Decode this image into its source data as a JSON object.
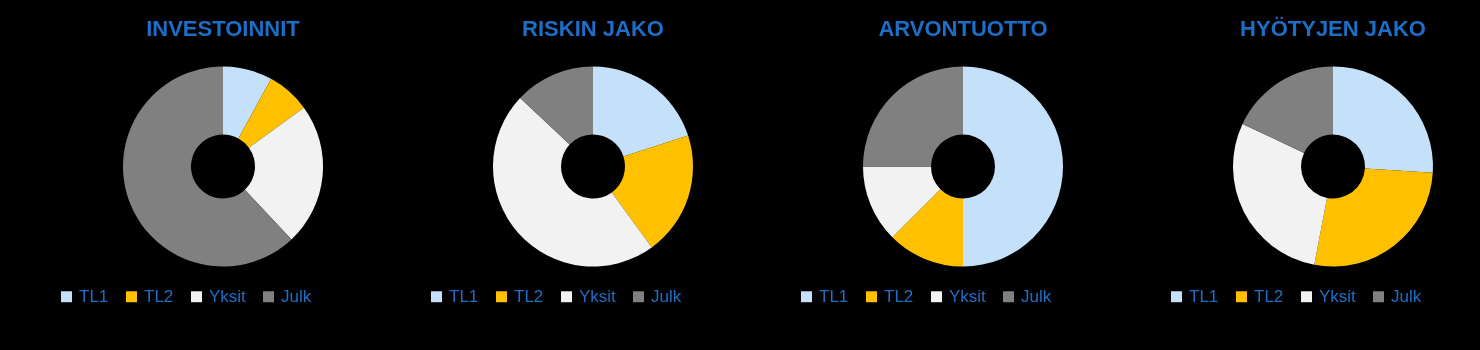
{
  "chart_data": [
    {
      "type": "donut",
      "title": "INVESTOINNIT",
      "categories": [
        "TL1",
        "TL2",
        "Yksit",
        "Julk"
      ],
      "values": [
        8,
        7,
        23,
        62
      ],
      "colors": [
        "#c5e0f9",
        "#ffc000",
        "#f2f2f2",
        "#808080"
      ],
      "legend": "bottom"
    },
    {
      "type": "donut",
      "title": "RISKIN JAKO",
      "categories": [
        "TL1",
        "TL2",
        "Yksit",
        "Julk"
      ],
      "values": [
        20,
        20,
        47,
        13
      ],
      "colors": [
        "#c5e0f9",
        "#ffc000",
        "#f2f2f2",
        "#808080"
      ],
      "legend": "bottom"
    },
    {
      "type": "donut",
      "title": "ARVONTUOTTO",
      "categories": [
        "TL1",
        "TL2",
        "Yksit",
        "Julk"
      ],
      "values": [
        50,
        12.5,
        12.5,
        25
      ],
      "colors": [
        "#c5e0f9",
        "#ffc000",
        "#f2f2f2",
        "#808080"
      ],
      "legend": "bottom"
    },
    {
      "type": "donut",
      "title": "HYÖTYJEN JAKO",
      "categories": [
        "TL1",
        "TL2",
        "Yksit",
        "Julk"
      ],
      "values": [
        26,
        27,
        29,
        18
      ],
      "colors": [
        "#c5e0f9",
        "#ffc000",
        "#f2f2f2",
        "#808080"
      ],
      "legend": "bottom"
    }
  ]
}
